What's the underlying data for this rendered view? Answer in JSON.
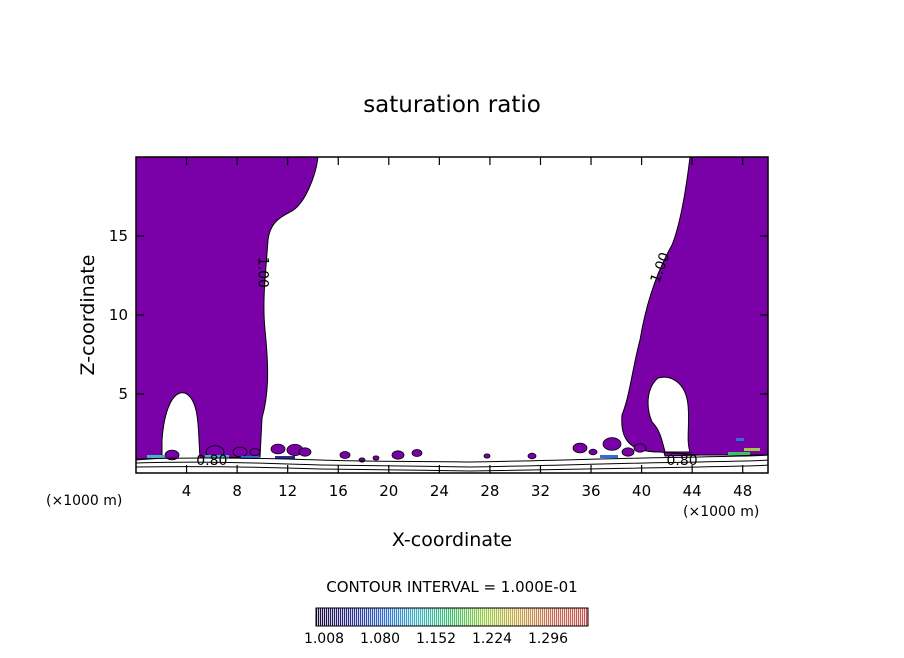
{
  "chart_data": {
    "type": "contour",
    "title": "saturation ratio",
    "xlabel": "X-coordinate",
    "ylabel": "Z-coordinate",
    "x_unit": "(×1000 m)",
    "xlim": [
      0,
      50
    ],
    "ylim": [
      0,
      20
    ],
    "x_ticks": [
      4,
      8,
      12,
      16,
      20,
      24,
      28,
      32,
      36,
      40,
      44,
      48
    ],
    "y_ticks": [
      5,
      10,
      15
    ],
    "contour_interval_text": "CONTOUR INTERVAL = 1.000E-01",
    "contour_labels": [
      {
        "text": "1.00",
        "x": 9.7,
        "y": 12.7
      },
      {
        "text": "1.00",
        "x": 41.8,
        "y": 12.9
      },
      {
        "text": "0.80",
        "x": 6.0,
        "y": 0.5
      },
      {
        "text": "0.80",
        "x": 43.2,
        "y": 0.5
      }
    ],
    "colorbar": {
      "tick_labels": [
        "1.008",
        "1.080",
        "1.152",
        "1.224",
        "1.296"
      ],
      "colors": [
        "#1a0a3a",
        "#2b2b8f",
        "#2f6fd8",
        "#3fb6c6",
        "#3fbf6a",
        "#9ccc44",
        "#c9a64a",
        "#c96a55",
        "#c9524f"
      ]
    },
    "fill_color": "#7a00a8",
    "grid": false
  }
}
